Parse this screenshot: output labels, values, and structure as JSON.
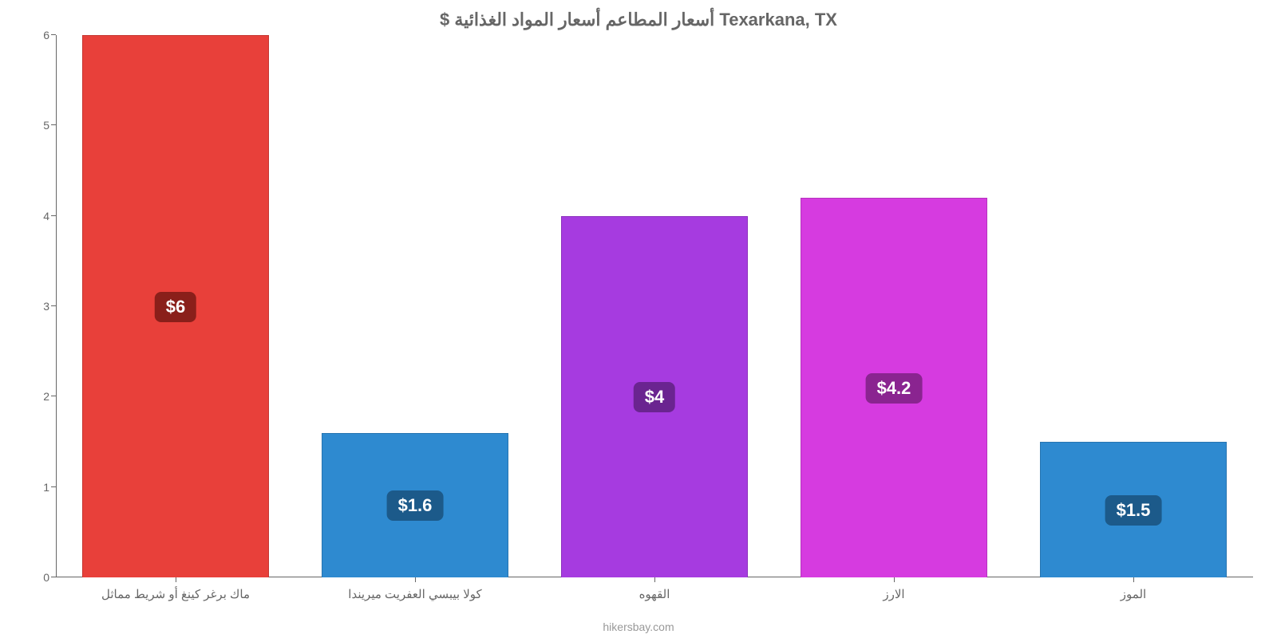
{
  "chart": {
    "type": "bar",
    "title": "Texarkana, TX أسعار المطاعم أسعار المواد الغذائية $",
    "title_color": "#666666",
    "title_fontsize": 22,
    "background_color": "#ffffff",
    "axis_color": "#666666",
    "label_color": "#666666",
    "label_fontsize": 15,
    "ylim": [
      0,
      6
    ],
    "yticks": [
      0,
      1,
      2,
      3,
      4,
      5,
      6
    ],
    "bar_width": 0.78,
    "attribution": "hikersbay.com",
    "categories": [
      "ماك برغر كينغ أو شريط مماثل",
      "كولا بيبسي العفريت ميريندا",
      "القهوه",
      "الارز",
      "الموز"
    ],
    "values": [
      6,
      1.6,
      4,
      4.2,
      1.5
    ],
    "value_labels": [
      "$6",
      "$1.6",
      "$4",
      "$4.2",
      "$1.5"
    ],
    "bar_colors": [
      "#e8403a",
      "#2e8ad0",
      "#a63be0",
      "#d63be0",
      "#2e8ad0"
    ],
    "badge_colors": [
      "#8a1f1a",
      "#1c5a8a",
      "#6a2490",
      "#8a2490",
      "#1c5a8a"
    ],
    "badge_text_color": "#ffffff",
    "badge_fontsize": 22
  }
}
